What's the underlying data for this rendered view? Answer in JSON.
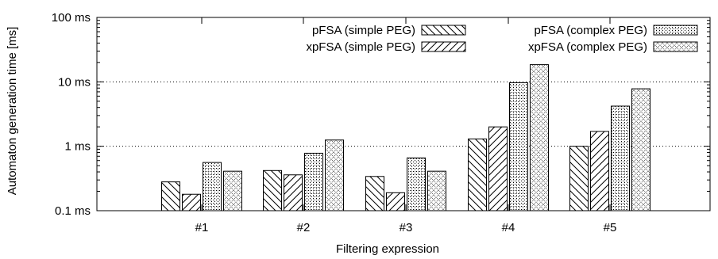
{
  "chart_data": {
    "type": "bar",
    "xlabel": "Filtering expression",
    "ylabel": "Automaton generation time [ms]",
    "yscale": "log",
    "ylim": [
      0.1,
      100
    ],
    "yticks": [
      {
        "value": 0.1,
        "label": "0.1 ms"
      },
      {
        "value": 1,
        "label": "1 ms"
      },
      {
        "value": 10,
        "label": "10 ms"
      },
      {
        "value": 100,
        "label": "100 ms"
      }
    ],
    "grid": "horizontal dotted",
    "legend_position": "top-right",
    "categories": [
      "#1",
      "#2",
      "#3",
      "#4",
      "#5"
    ],
    "series": [
      {
        "name": "pFSA (simple PEG)",
        "pattern": "hatch-back",
        "values": [
          0.28,
          0.42,
          0.34,
          1.3,
          1.0
        ]
      },
      {
        "name": "xpFSA (simple PEG)",
        "pattern": "hatch-fwd",
        "values": [
          0.18,
          0.36,
          0.19,
          2.0,
          1.7
        ]
      },
      {
        "name": "pFSA  (complex PEG)",
        "pattern": "dots-dense",
        "values": [
          0.56,
          0.78,
          0.66,
          9.7,
          4.2
        ]
      },
      {
        "name": "xpFSA (complex PEG)",
        "pattern": "crosshatch",
        "values": [
          0.41,
          1.25,
          0.41,
          18.5,
          7.8
        ]
      }
    ]
  }
}
